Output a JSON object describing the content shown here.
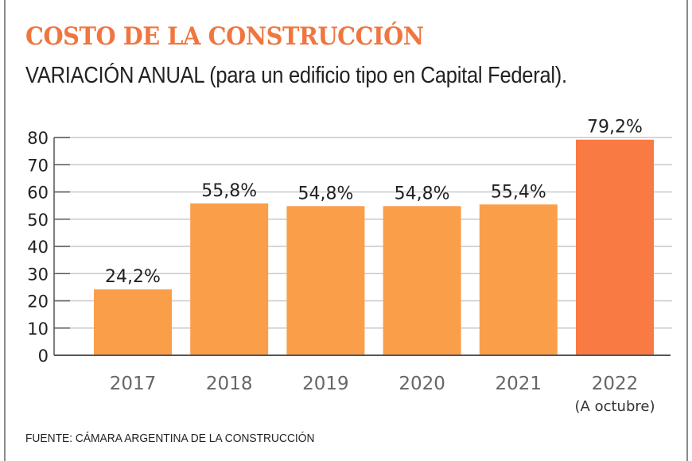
{
  "header": {
    "title": "COSTO DE LA CONSTRUCCIÓN",
    "subtitle": "VARIACIÓN ANUAL (para un edificio tipo en Capital Federal)."
  },
  "footer": {
    "source": "FUENTE: CÁMARA ARGENTINA DE LA CONSTRUCCIÓN"
  },
  "colors": {
    "title": "#f07640",
    "bar": "#fb9e4a",
    "bar_highlight": "#f97a42",
    "gridline": "#c8c8c8",
    "axis": "#555555"
  },
  "chart_data": {
    "type": "bar",
    "title": "COSTO DE LA CONSTRUCCIÓN",
    "subtitle": "VARIACIÓN ANUAL (para un edificio tipo en Capital Federal).",
    "xlabel": "",
    "ylabel": "",
    "categories": [
      "2017",
      "2018",
      "2019",
      "2020",
      "2021",
      "2022"
    ],
    "category_sublabels": [
      "",
      "",
      "",
      "",
      "",
      "(A octubre)"
    ],
    "values": [
      24.2,
      55.8,
      54.8,
      54.8,
      55.4,
      79.2
    ],
    "data_labels": [
      "24,2%",
      "55,8%",
      "54,8%",
      "54,8%",
      "55,4%",
      "79,2%"
    ],
    "highlight_index": 5,
    "ylim": [
      0,
      80
    ],
    "yticks": [
      0,
      10,
      20,
      30,
      40,
      50,
      60,
      70,
      80
    ],
    "grid": true,
    "legend": "none",
    "source": "FUENTE: CÁMARA ARGENTINA DE LA CONSTRUCCIÓN"
  }
}
